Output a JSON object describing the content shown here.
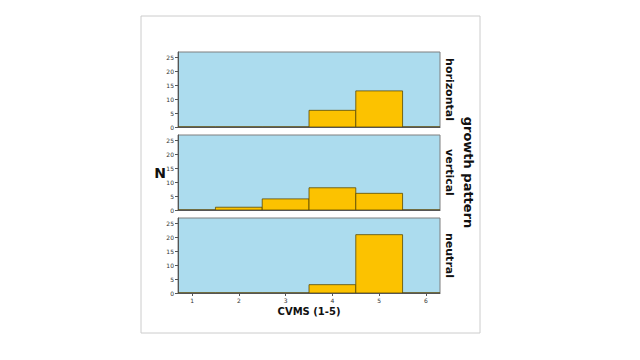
{
  "chart_data": {
    "type": "histogram",
    "x_label": "CVMS (1-5)",
    "y_label": "N",
    "facet_label": "growth pattern",
    "color": "#fcc200",
    "xlim": [
      0.7,
      6.3
    ],
    "xticks": [
      1,
      2,
      3,
      4,
      5,
      6
    ],
    "ylim": [
      0,
      27
    ],
    "yticks": [
      0,
      5,
      10,
      15,
      20,
      25
    ],
    "bins": [
      0.5,
      1.5,
      2.5,
      3.5,
      4.5,
      5.5,
      6.5
    ],
    "panels": [
      {
        "title": "horizontal",
        "counts": [
          0,
          0,
          0,
          6,
          13,
          0
        ]
      },
      {
        "title": "vertical",
        "counts": [
          0,
          1,
          4,
          8,
          6,
          0
        ]
      },
      {
        "title": "neutral",
        "counts": [
          0,
          0,
          0,
          3,
          21,
          0
        ]
      }
    ]
  }
}
